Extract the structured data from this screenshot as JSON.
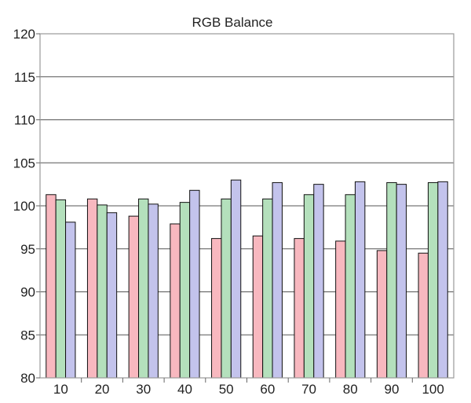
{
  "chart_data": {
    "type": "bar",
    "title": "RGB Balance",
    "xlabel": "",
    "ylabel": "",
    "categories": [
      "10",
      "20",
      "30",
      "40",
      "50",
      "60",
      "70",
      "80",
      "90",
      "100"
    ],
    "series": [
      {
        "color": "#f8b8bf",
        "values": [
          101.3,
          100.8,
          98.8,
          97.9,
          96.2,
          96.5,
          96.2,
          95.9,
          94.8,
          94.5
        ]
      },
      {
        "color": "#b4e0bc",
        "values": [
          100.7,
          100.1,
          100.8,
          100.4,
          100.8,
          100.8,
          101.3,
          101.3,
          102.7,
          102.7
        ]
      },
      {
        "color": "#c3c3ec",
        "values": [
          98.1,
          99.2,
          100.2,
          101.8,
          103.0,
          102.7,
          102.5,
          102.8,
          102.5,
          102.8
        ]
      }
    ],
    "ylim": [
      80,
      120
    ],
    "yticks": [
      80,
      85,
      90,
      95,
      100,
      105,
      110,
      115,
      120
    ],
    "grid": true,
    "legend": "none"
  }
}
